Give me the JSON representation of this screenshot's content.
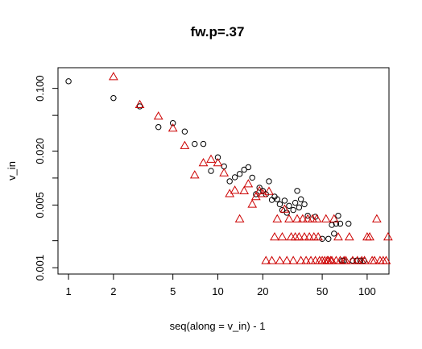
{
  "chart_data": {
    "type": "scatter",
    "title": "fw.p=.37",
    "xlabel": "seq(along = v_in) - 1",
    "ylabel": "v_in",
    "x_scale": "log",
    "y_scale": "log",
    "xlim": [
      0.85,
      140
    ],
    "ylim": [
      0.00085,
      0.17
    ],
    "x_ticks": [
      1,
      2,
      5,
      10,
      20,
      50,
      100
    ],
    "x_tick_labels": [
      "1",
      "2",
      "5",
      "10",
      "20",
      "50",
      "100"
    ],
    "y_ticks": [
      0.001,
      0.002,
      0.005,
      0.01,
      0.02,
      0.05,
      0.1
    ],
    "y_tick_labels": [
      "0.001",
      "",
      "0.005",
      "",
      "0.020",
      "",
      "0.100"
    ],
    "grid": false,
    "legend": "none",
    "series": [
      {
        "marker": "circle",
        "color": "#000000",
        "points": [
          [
            1,
            0.12
          ],
          [
            2,
            0.078
          ],
          [
            3,
            0.063
          ],
          [
            4,
            0.037
          ],
          [
            5,
            0.041
          ],
          [
            6,
            0.033
          ],
          [
            7,
            0.024
          ],
          [
            8,
            0.024
          ],
          [
            9,
            0.012
          ],
          [
            10,
            0.017
          ],
          [
            11,
            0.0135
          ],
          [
            12,
            0.0092
          ],
          [
            13,
            0.0102
          ],
          [
            14,
            0.0111
          ],
          [
            15,
            0.0124
          ],
          [
            16,
            0.0132
          ],
          [
            17,
            0.0101
          ],
          [
            18,
            0.0066
          ],
          [
            19,
            0.0078
          ],
          [
            20,
            0.0072
          ],
          [
            21,
            0.0066
          ],
          [
            22,
            0.0092
          ],
          [
            23,
            0.0057
          ],
          [
            24,
            0.0062
          ],
          [
            25,
            0.0058
          ],
          [
            26,
            0.0051
          ],
          [
            27,
            0.0044
          ],
          [
            28,
            0.0056
          ],
          [
            29,
            0.0041
          ],
          [
            30,
            0.0049
          ],
          [
            32,
            0.0044
          ],
          [
            33,
            0.0053
          ],
          [
            34,
            0.0072
          ],
          [
            35,
            0.0047
          ],
          [
            36,
            0.0058
          ],
          [
            38,
            0.0051
          ],
          [
            40,
            0.0038
          ],
          [
            45,
            0.0037
          ],
          [
            50,
            0.0021
          ],
          [
            55,
            0.0021
          ],
          [
            58,
            0.003
          ],
          [
            60,
            0.0024
          ],
          [
            62,
            0.0031
          ],
          [
            64,
            0.0038
          ],
          [
            66,
            0.0031
          ],
          [
            68,
            0.0012
          ],
          [
            70,
            0.0012
          ],
          [
            75,
            0.0031
          ],
          [
            80,
            0.0012
          ],
          [
            85,
            0.0012
          ],
          [
            90,
            0.0012
          ],
          [
            95,
            0.0012
          ]
        ]
      },
      {
        "marker": "triangle",
        "color": "#cc0000",
        "points": [
          [
            2,
            0.135
          ],
          [
            3,
            0.066
          ],
          [
            4,
            0.049
          ],
          [
            5,
            0.036
          ],
          [
            6,
            0.023
          ],
          [
            7,
            0.0108
          ],
          [
            8,
            0.0148
          ],
          [
            9,
            0.0162
          ],
          [
            10,
            0.0148
          ],
          [
            11,
            0.0114
          ],
          [
            12,
            0.0067
          ],
          [
            13,
            0.0073
          ],
          [
            14,
            0.0035
          ],
          [
            15,
            0.0072
          ],
          [
            16,
            0.0086
          ],
          [
            17,
            0.0051
          ],
          [
            18,
            0.0062
          ],
          [
            19,
            0.0072
          ],
          [
            20,
            0.0067
          ],
          [
            21,
            0.0012
          ],
          [
            22,
            0.0071
          ],
          [
            23,
            0.0012
          ],
          [
            24,
            0.0022
          ],
          [
            25,
            0.0035
          ],
          [
            26,
            0.0012
          ],
          [
            27,
            0.0022
          ],
          [
            28,
            0.0045
          ],
          [
            29,
            0.0012
          ],
          [
            30,
            0.0035
          ],
          [
            31,
            0.0022
          ],
          [
            32,
            0.0012
          ],
          [
            33,
            0.0022
          ],
          [
            34,
            0.0035
          ],
          [
            35,
            0.0022
          ],
          [
            36,
            0.0012
          ],
          [
            37,
            0.0035
          ],
          [
            38,
            0.0022
          ],
          [
            39,
            0.0012
          ],
          [
            40,
            0.0035
          ],
          [
            41,
            0.0022
          ],
          [
            42,
            0.0012
          ],
          [
            43,
            0.0035
          ],
          [
            44,
            0.0022
          ],
          [
            45,
            0.0012
          ],
          [
            46,
            0.0035
          ],
          [
            47,
            0.0022
          ],
          [
            48,
            0.0012
          ],
          [
            50,
            0.0012
          ],
          [
            52,
            0.0012
          ],
          [
            53,
            0.0035
          ],
          [
            54,
            0.0012
          ],
          [
            55,
            0.0012
          ],
          [
            57,
            0.0012
          ],
          [
            58,
            0.0012
          ],
          [
            60,
            0.0035
          ],
          [
            62,
            0.0012
          ],
          [
            64,
            0.0022
          ],
          [
            66,
            0.0012
          ],
          [
            70,
            0.0012
          ],
          [
            72,
            0.0012
          ],
          [
            76,
            0.0022
          ],
          [
            80,
            0.0012
          ],
          [
            86,
            0.0012
          ],
          [
            92,
            0.0012
          ],
          [
            96,
            0.0012
          ],
          [
            100,
            0.0022
          ],
          [
            104,
            0.0022
          ],
          [
            108,
            0.0012
          ],
          [
            112,
            0.0012
          ],
          [
            116,
            0.0035
          ],
          [
            122,
            0.0012
          ],
          [
            128,
            0.0012
          ],
          [
            134,
            0.0012
          ],
          [
            138,
            0.0022
          ]
        ]
      }
    ]
  }
}
